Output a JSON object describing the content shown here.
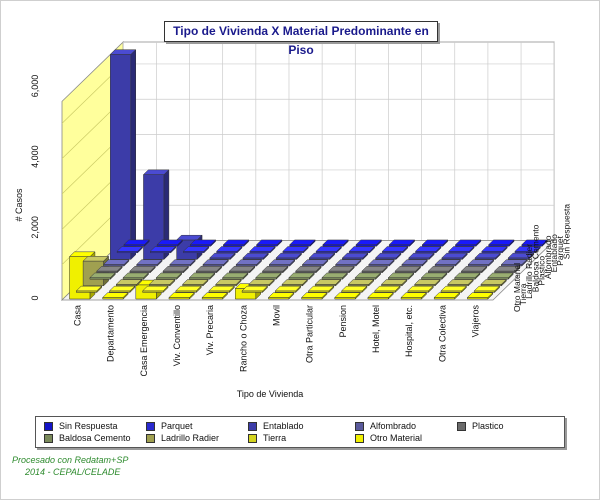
{
  "chart_data": {
    "type": "bar",
    "title": "Tipo de Vivienda X Material Predominante en Piso",
    "xlabel": "Tipo de Vivienda",
    "ylabel": "# Casos",
    "yticks": [
      "0",
      "2,000",
      "4,000",
      "6,000"
    ],
    "ylim": [
      0,
      6000
    ],
    "categories": [
      "Casa",
      "Departamento",
      "Casa Emergencia",
      "Viv. Conventillo",
      "Viv. Precaria",
      "Rancho o Choza",
      "Movil",
      "Otra Particular",
      "Pension",
      "Hotel, Motel",
      "Hospital, etc.",
      "Otra Colectiva",
      "Viajeros"
    ],
    "series": [
      {
        "name": "Sin Respuesta",
        "color": "#1414c8",
        "values": [
          0,
          0,
          0,
          0,
          0,
          0,
          0,
          0,
          0,
          0,
          0,
          0,
          0
        ]
      },
      {
        "name": "Parquet",
        "color": "#2a2ad0",
        "values": [
          0,
          0,
          0,
          0,
          0,
          0,
          0,
          0,
          0,
          0,
          0,
          0,
          0
        ]
      },
      {
        "name": "Entablado",
        "color": "#3c3ca8",
        "values": [
          5800,
          2400,
          550,
          0,
          0,
          0,
          0,
          0,
          0,
          0,
          0,
          0,
          0
        ]
      },
      {
        "name": "Alfombrado",
        "color": "#5a5a9c",
        "values": [
          0,
          0,
          0,
          0,
          0,
          0,
          0,
          0,
          0,
          0,
          0,
          0,
          0
        ]
      },
      {
        "name": "Plastico",
        "color": "#6b6b6b",
        "values": [
          0,
          0,
          0,
          0,
          0,
          0,
          0,
          0,
          0,
          0,
          0,
          0,
          0
        ]
      },
      {
        "name": "Baldosa Cemento",
        "color": "#7a8a5a",
        "values": [
          0,
          0,
          0,
          0,
          0,
          0,
          0,
          0,
          0,
          0,
          0,
          0,
          0
        ]
      },
      {
        "name": "Ladrillo Radier",
        "color": "#a0a050",
        "values": [
          700,
          0,
          0,
          0,
          0,
          0,
          0,
          0,
          0,
          0,
          0,
          0,
          0
        ]
      },
      {
        "name": "Tierra",
        "color": "#d4d41e",
        "values": [
          0,
          0,
          0,
          0,
          0,
          0,
          0,
          0,
          0,
          0,
          0,
          0,
          0
        ]
      },
      {
        "name": "Otro Material",
        "color": "#f0f000",
        "values": [
          1200,
          0,
          400,
          0,
          0,
          300,
          0,
          0,
          0,
          0,
          0,
          0,
          0
        ]
      }
    ],
    "depth_labels": [
      "Sin Respuesta",
      "Parquet",
      "Entablado",
      "Alfombrado",
      "Plastico",
      "Baldosa Cemento",
      "Ladrillo Radier",
      "Tierra",
      "Otro Material"
    ],
    "legend_position": "bottom",
    "grid": true
  },
  "legend": {
    "items": [
      {
        "label": "Sin Respuesta",
        "color": "#1414c8"
      },
      {
        "label": "Parquet",
        "color": "#2a2ad0"
      },
      {
        "label": "Entablado",
        "color": "#3c3ca8"
      },
      {
        "label": "Alfombrado",
        "color": "#5a5a9c"
      },
      {
        "label": "Plastico",
        "color": "#6b6b6b"
      },
      {
        "label": "Baldosa Cemento",
        "color": "#7a8a5a"
      },
      {
        "label": "Ladrillo Radier",
        "color": "#a0a050"
      },
      {
        "label": "Tierra",
        "color": "#d4d41e"
      },
      {
        "label": "Otro Material",
        "color": "#f0f000"
      }
    ]
  },
  "credits": {
    "line1": "Procesado con Redatam+SP",
    "line2": "2014 - CEPAL/CELADE"
  }
}
